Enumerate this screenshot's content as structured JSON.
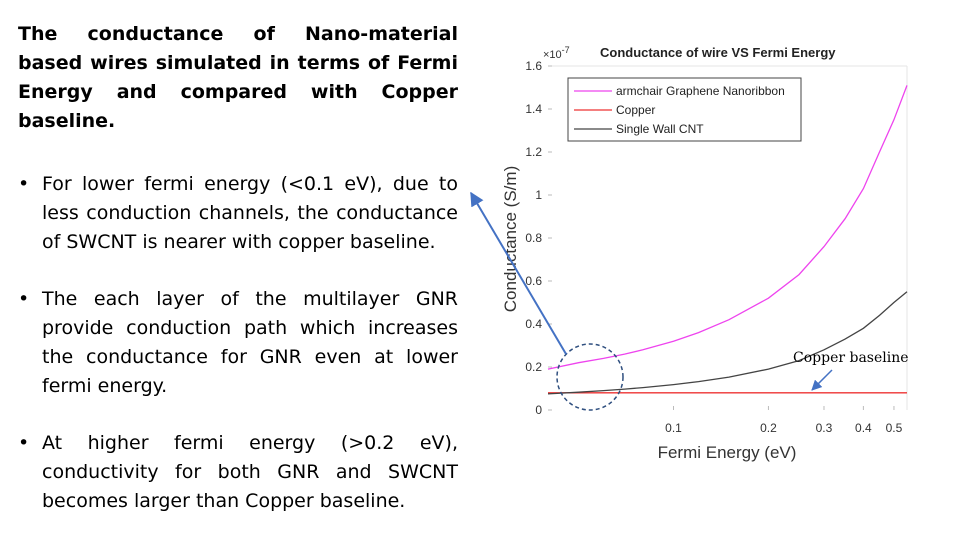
{
  "heading": "The conductance of Nano-material based wires simulated in terms of Fermi Energy and compared with Copper baseline.",
  "bullets": [
    "For lower fermi energy (<0.1 eV), due to less conduction channels, the conductance of SWCNT is nearer with copper baseline.",
    "The each layer of the multilayer GNR provide conduction path which increases the conductance for GNR even at lower fermi energy.",
    "At higher fermi energy (>0.2 eV), conductivity for both GNR and SWCNT becomes larger than Copper baseline."
  ],
  "bullet_symbol": "•",
  "annotation": "Copper baseline",
  "chart_data": {
    "type": "line",
    "title": "Conductance of wire VS Fermi Energy",
    "xlabel": "Fermi Energy (eV)",
    "ylabel": "Conductance (S/m)",
    "y_exponent_label": "×10",
    "y_exponent": "-7",
    "x_scale": "log",
    "xlim": [
      0.04,
      0.55
    ],
    "ylim": [
      0,
      1.6
    ],
    "x_ticks": [
      0.1,
      0.2,
      0.3,
      0.4,
      0.5
    ],
    "x_tick_labels": [
      "0.1",
      "0.2",
      "0.3",
      "0.4",
      "0.5"
    ],
    "y_ticks": [
      0,
      0.2,
      0.4,
      0.6,
      0.8,
      1.0,
      1.2,
      1.4,
      1.6
    ],
    "y_tick_labels": [
      "0",
      "0.2",
      "0.4",
      "0.6",
      "0.8",
      "1",
      "1.2",
      "1.4",
      "1.6"
    ],
    "legend_position": "top-left",
    "grid": false,
    "series": [
      {
        "name": "armchair Graphene Nanoribbon",
        "color": "#ee44ee",
        "x": [
          0.04,
          0.05,
          0.06,
          0.07,
          0.08,
          0.1,
          0.12,
          0.15,
          0.2,
          0.25,
          0.3,
          0.35,
          0.4,
          0.45,
          0.5,
          0.55
        ],
        "y": [
          0.19,
          0.22,
          0.24,
          0.26,
          0.28,
          0.32,
          0.36,
          0.42,
          0.52,
          0.63,
          0.76,
          0.89,
          1.03,
          1.2,
          1.35,
          1.51
        ]
      },
      {
        "name": "Copper",
        "color": "#ee3333",
        "x": [
          0.04,
          0.55
        ],
        "y": [
          0.08,
          0.08
        ]
      },
      {
        "name": "Single Wall CNT",
        "color": "#444444",
        "x": [
          0.04,
          0.05,
          0.06,
          0.07,
          0.08,
          0.1,
          0.12,
          0.15,
          0.2,
          0.25,
          0.3,
          0.35,
          0.4,
          0.45,
          0.5,
          0.55
        ],
        "y": [
          0.075,
          0.083,
          0.09,
          0.097,
          0.104,
          0.118,
          0.132,
          0.153,
          0.19,
          0.23,
          0.28,
          0.33,
          0.38,
          0.44,
          0.5,
          0.55
        ]
      }
    ]
  }
}
